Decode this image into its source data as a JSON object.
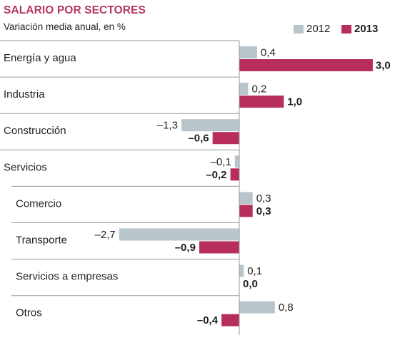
{
  "header": {
    "title": "SALARIO POR SECTORES",
    "subtitle": "Variación media anual, en %"
  },
  "colors": {
    "title": "#b5375d",
    "series_2012": "#b8c6cc",
    "series_2013": "#b72d5c",
    "grid": "#9a9a9a",
    "text": "#231f20"
  },
  "chart_data": {
    "type": "bar",
    "orientation": "horizontal",
    "title": "SALARIO POR SECTORES",
    "subtitle": "Variación media anual, en %",
    "categories": [
      "Energía y agua",
      "Industria",
      "Construcción",
      "Servicios",
      "Comercio",
      "Transporte",
      "Servicios a empresas",
      "Otros"
    ],
    "indented": [
      false,
      false,
      false,
      false,
      true,
      true,
      true,
      true
    ],
    "series": [
      {
        "name": "2012",
        "values": [
          0.4,
          0.2,
          -1.3,
          -0.1,
          0.3,
          -2.7,
          0.1,
          0.8
        ],
        "labels": [
          "0,4",
          "0,2",
          "–1,3",
          "–0,1",
          "0,3",
          "–2,7",
          "0,1",
          "0,8"
        ]
      },
      {
        "name": "2013",
        "values": [
          3.0,
          1.0,
          -0.6,
          -0.2,
          0.3,
          -0.9,
          0.0,
          -0.4
        ],
        "labels": [
          "3,0",
          "1,0",
          "–0,6",
          "–0,2",
          "0,3",
          "–0,9",
          "0,0",
          "–0,4"
        ]
      }
    ],
    "legend_position": "top-right",
    "grid": false
  }
}
